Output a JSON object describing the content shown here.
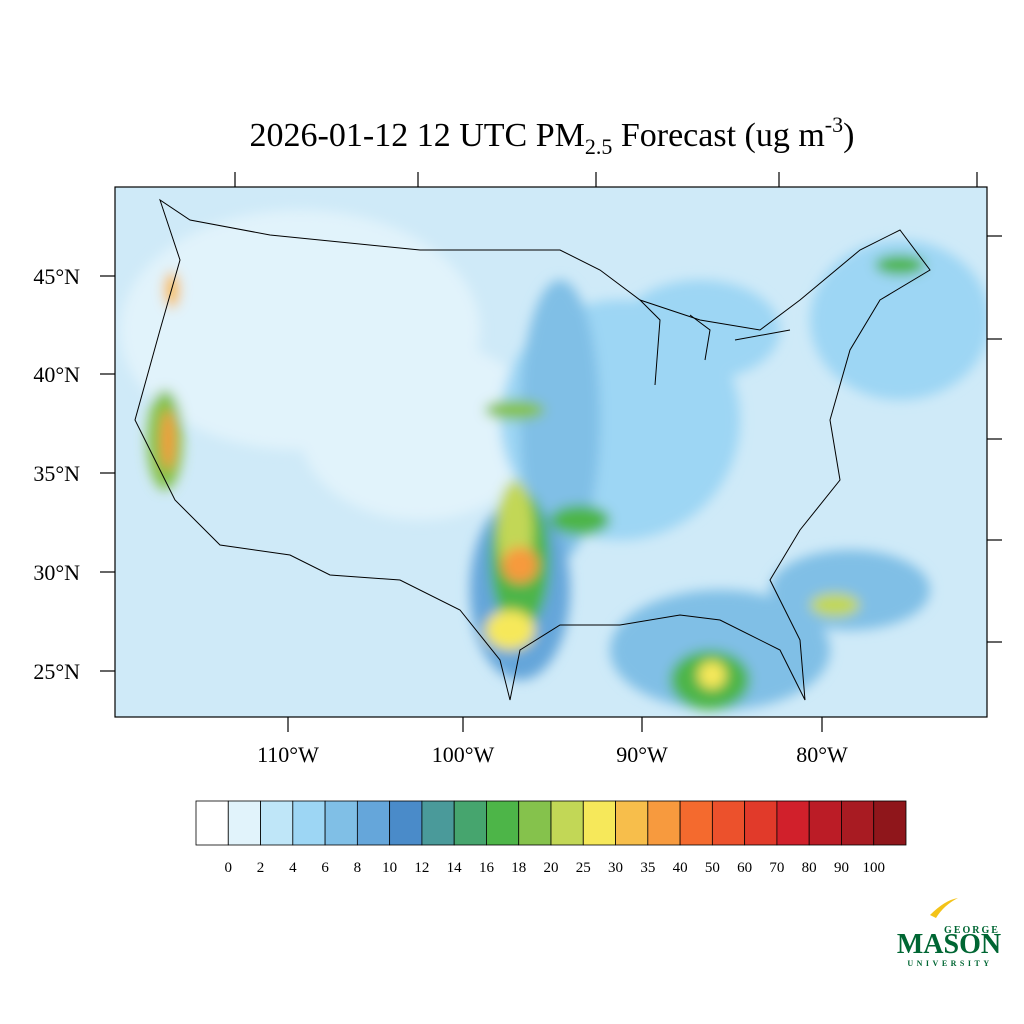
{
  "title": {
    "main": "2026-01-12 12 UTC PM",
    "subscript": "2.5",
    "middle": " Forecast (ug m",
    "superscript": "-3",
    "end": ")"
  },
  "map": {
    "latitude_labels": [
      "45°N",
      "40°N",
      "35°N",
      "30°N",
      "25°N"
    ],
    "longitude_labels": [
      "110°W",
      "100°W",
      "90°W",
      "80°W"
    ]
  },
  "colorbar": {
    "labels": [
      0,
      2,
      4,
      6,
      8,
      10,
      12,
      14,
      16,
      18,
      20,
      25,
      30,
      35,
      40,
      50,
      60,
      70,
      80,
      90,
      100
    ],
    "colors": [
      "#ffffff",
      "#e1f3fb",
      "#bfe6f8",
      "#9dd6f4",
      "#80bfe6",
      "#65a6da",
      "#4a8bc9",
      "#4a9a9a",
      "#46a56e",
      "#4db548",
      "#85c24c",
      "#c2d756",
      "#f6e85a",
      "#f7be4b",
      "#f79a3e",
      "#f46a2e",
      "#ec512c",
      "#e13a2a",
      "#d1202b",
      "#bb1c26",
      "#a81b22",
      "#8f161b"
    ]
  },
  "logo": {
    "top": "GEORGE",
    "name": "MASON",
    "bottom": "UNIVERSITY"
  }
}
